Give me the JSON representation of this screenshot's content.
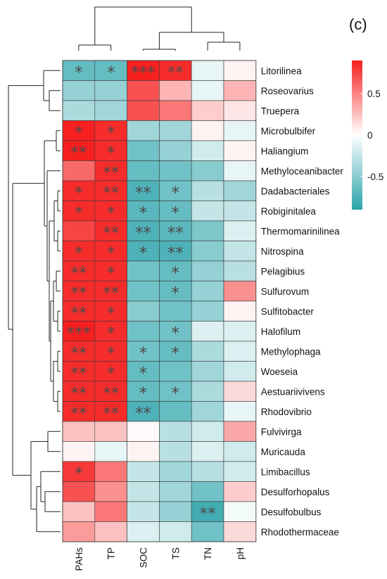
{
  "panel_label": "(c)",
  "chart_data": {
    "type": "heatmap",
    "columns": [
      "PAHs",
      "TP",
      "SOC",
      "TS",
      "TN",
      "pH"
    ],
    "rows": [
      "Litorilinea",
      "Roseovarius",
      "Truepera",
      "Microbulbifer",
      "Haliangium",
      "Methyloceanibacter",
      "Dadabacteriales",
      "Robiginitalea",
      "Thermomarinilinea",
      "Nitrospina",
      "Pelagibius",
      "Sulfurovum",
      "Sulfitobacter",
      "Halofilum",
      "Methylophaga",
      "Woeseia",
      "Aestuariivivens",
      "Rhodovibrio",
      "Fulvivirga",
      "Muricauda",
      "Limibacillus",
      "Desulforhopalus",
      "Desulfobulbus",
      "Rhodothermaceae"
    ],
    "values": [
      [
        -0.65,
        -0.65,
        0.9,
        0.85,
        -0.1,
        0.05
      ],
      [
        -0.45,
        -0.45,
        0.7,
        0.3,
        -0.1,
        0.3
      ],
      [
        -0.35,
        -0.4,
        0.7,
        0.55,
        0.2,
        0.1
      ],
      [
        0.9,
        0.85,
        -0.4,
        -0.4,
        0.05,
        -0.1
      ],
      [
        0.9,
        0.85,
        -0.6,
        -0.45,
        -0.2,
        0.05
      ],
      [
        0.6,
        0.85,
        -0.65,
        -0.6,
        -0.5,
        -0.1
      ],
      [
        0.85,
        0.85,
        -0.75,
        -0.6,
        -0.3,
        -0.4
      ],
      [
        0.85,
        0.85,
        -0.7,
        -0.65,
        -0.25,
        -0.25
      ],
      [
        0.75,
        0.85,
        -0.75,
        -0.7,
        -0.55,
        -0.15
      ],
      [
        0.85,
        0.85,
        -0.75,
        -0.75,
        -0.5,
        -0.25
      ],
      [
        0.85,
        0.85,
        -0.6,
        -0.65,
        -0.45,
        -0.3
      ],
      [
        0.85,
        0.85,
        -0.6,
        -0.65,
        -0.45,
        0.45
      ],
      [
        0.85,
        0.85,
        -0.5,
        -0.6,
        -0.45,
        0.05
      ],
      [
        0.9,
        0.85,
        -0.6,
        -0.6,
        -0.15,
        -0.15
      ],
      [
        0.85,
        0.85,
        -0.6,
        -0.65,
        -0.35,
        -0.15
      ],
      [
        0.85,
        0.85,
        -0.65,
        -0.6,
        -0.4,
        -0.2
      ],
      [
        0.85,
        0.85,
        -0.65,
        -0.6,
        -0.35,
        0.15
      ],
      [
        0.85,
        0.85,
        -0.75,
        -0.65,
        -0.4,
        -0.1
      ],
      [
        0.25,
        0.25,
        0.02,
        -0.3,
        -0.2,
        0.35
      ],
      [
        0.05,
        -0.1,
        0.05,
        -0.3,
        -0.15,
        -0.2
      ],
      [
        0.8,
        0.55,
        -0.25,
        -0.4,
        -0.3,
        -0.2
      ],
      [
        0.7,
        0.45,
        -0.25,
        -0.4,
        -0.6,
        0.2
      ],
      [
        0.25,
        0.55,
        -0.25,
        -0.45,
        -0.8,
        -0.05
      ],
      [
        0.4,
        0.25,
        -0.15,
        -0.2,
        -0.6,
        0.15
      ]
    ],
    "significance": [
      [
        "*",
        "*",
        "***",
        "**",
        "",
        ""
      ],
      [
        "",
        "",
        "",
        "",
        "",
        ""
      ],
      [
        "",
        "",
        "",
        "",
        "",
        ""
      ],
      [
        "*",
        "*",
        "",
        "",
        "",
        ""
      ],
      [
        "**",
        "*",
        "",
        "",
        "",
        ""
      ],
      [
        "",
        "**",
        "",
        "",
        "",
        ""
      ],
      [
        "*",
        "**",
        "**",
        "*",
        "",
        ""
      ],
      [
        "*",
        "*",
        "*",
        "*",
        "",
        ""
      ],
      [
        "",
        "**",
        "**",
        "**",
        "",
        ""
      ],
      [
        "*",
        "*",
        "*",
        "**",
        "",
        ""
      ],
      [
        "**",
        "*",
        "",
        "*",
        "",
        ""
      ],
      [
        "**",
        "**",
        "",
        "*",
        "",
        ""
      ],
      [
        "**",
        "*",
        "",
        "",
        "",
        ""
      ],
      [
        "***",
        "*",
        "",
        "*",
        "",
        ""
      ],
      [
        "**",
        "*",
        "*",
        "*",
        "",
        ""
      ],
      [
        "**",
        "*",
        "*",
        "",
        "",
        ""
      ],
      [
        "**",
        "**",
        "*",
        "*",
        "",
        ""
      ],
      [
        "**",
        "**",
        "**",
        "",
        "",
        ""
      ],
      [
        "",
        "",
        "",
        "",
        "",
        ""
      ],
      [
        "",
        "",
        "",
        "",
        "",
        ""
      ],
      [
        "*",
        "",
        "",
        "",
        "",
        ""
      ],
      [
        "",
        "",
        "",
        "",
        "",
        ""
      ],
      [
        "",
        "",
        "",
        "",
        "**",
        ""
      ],
      [
        "",
        "",
        "",
        "",
        "",
        ""
      ]
    ],
    "color_scale": {
      "min": -0.9,
      "max": 0.9,
      "low_color": "#2aa3aa",
      "mid_color": "#ffffff",
      "high_color": "#f5201f",
      "ticks": [
        0.5,
        0,
        -0.5
      ],
      "tick_labels": [
        "0.5",
        "0",
        "-0.5"
      ]
    },
    "legend_position": "top-right",
    "row_dendrogram": true,
    "column_dendrogram": true
  }
}
